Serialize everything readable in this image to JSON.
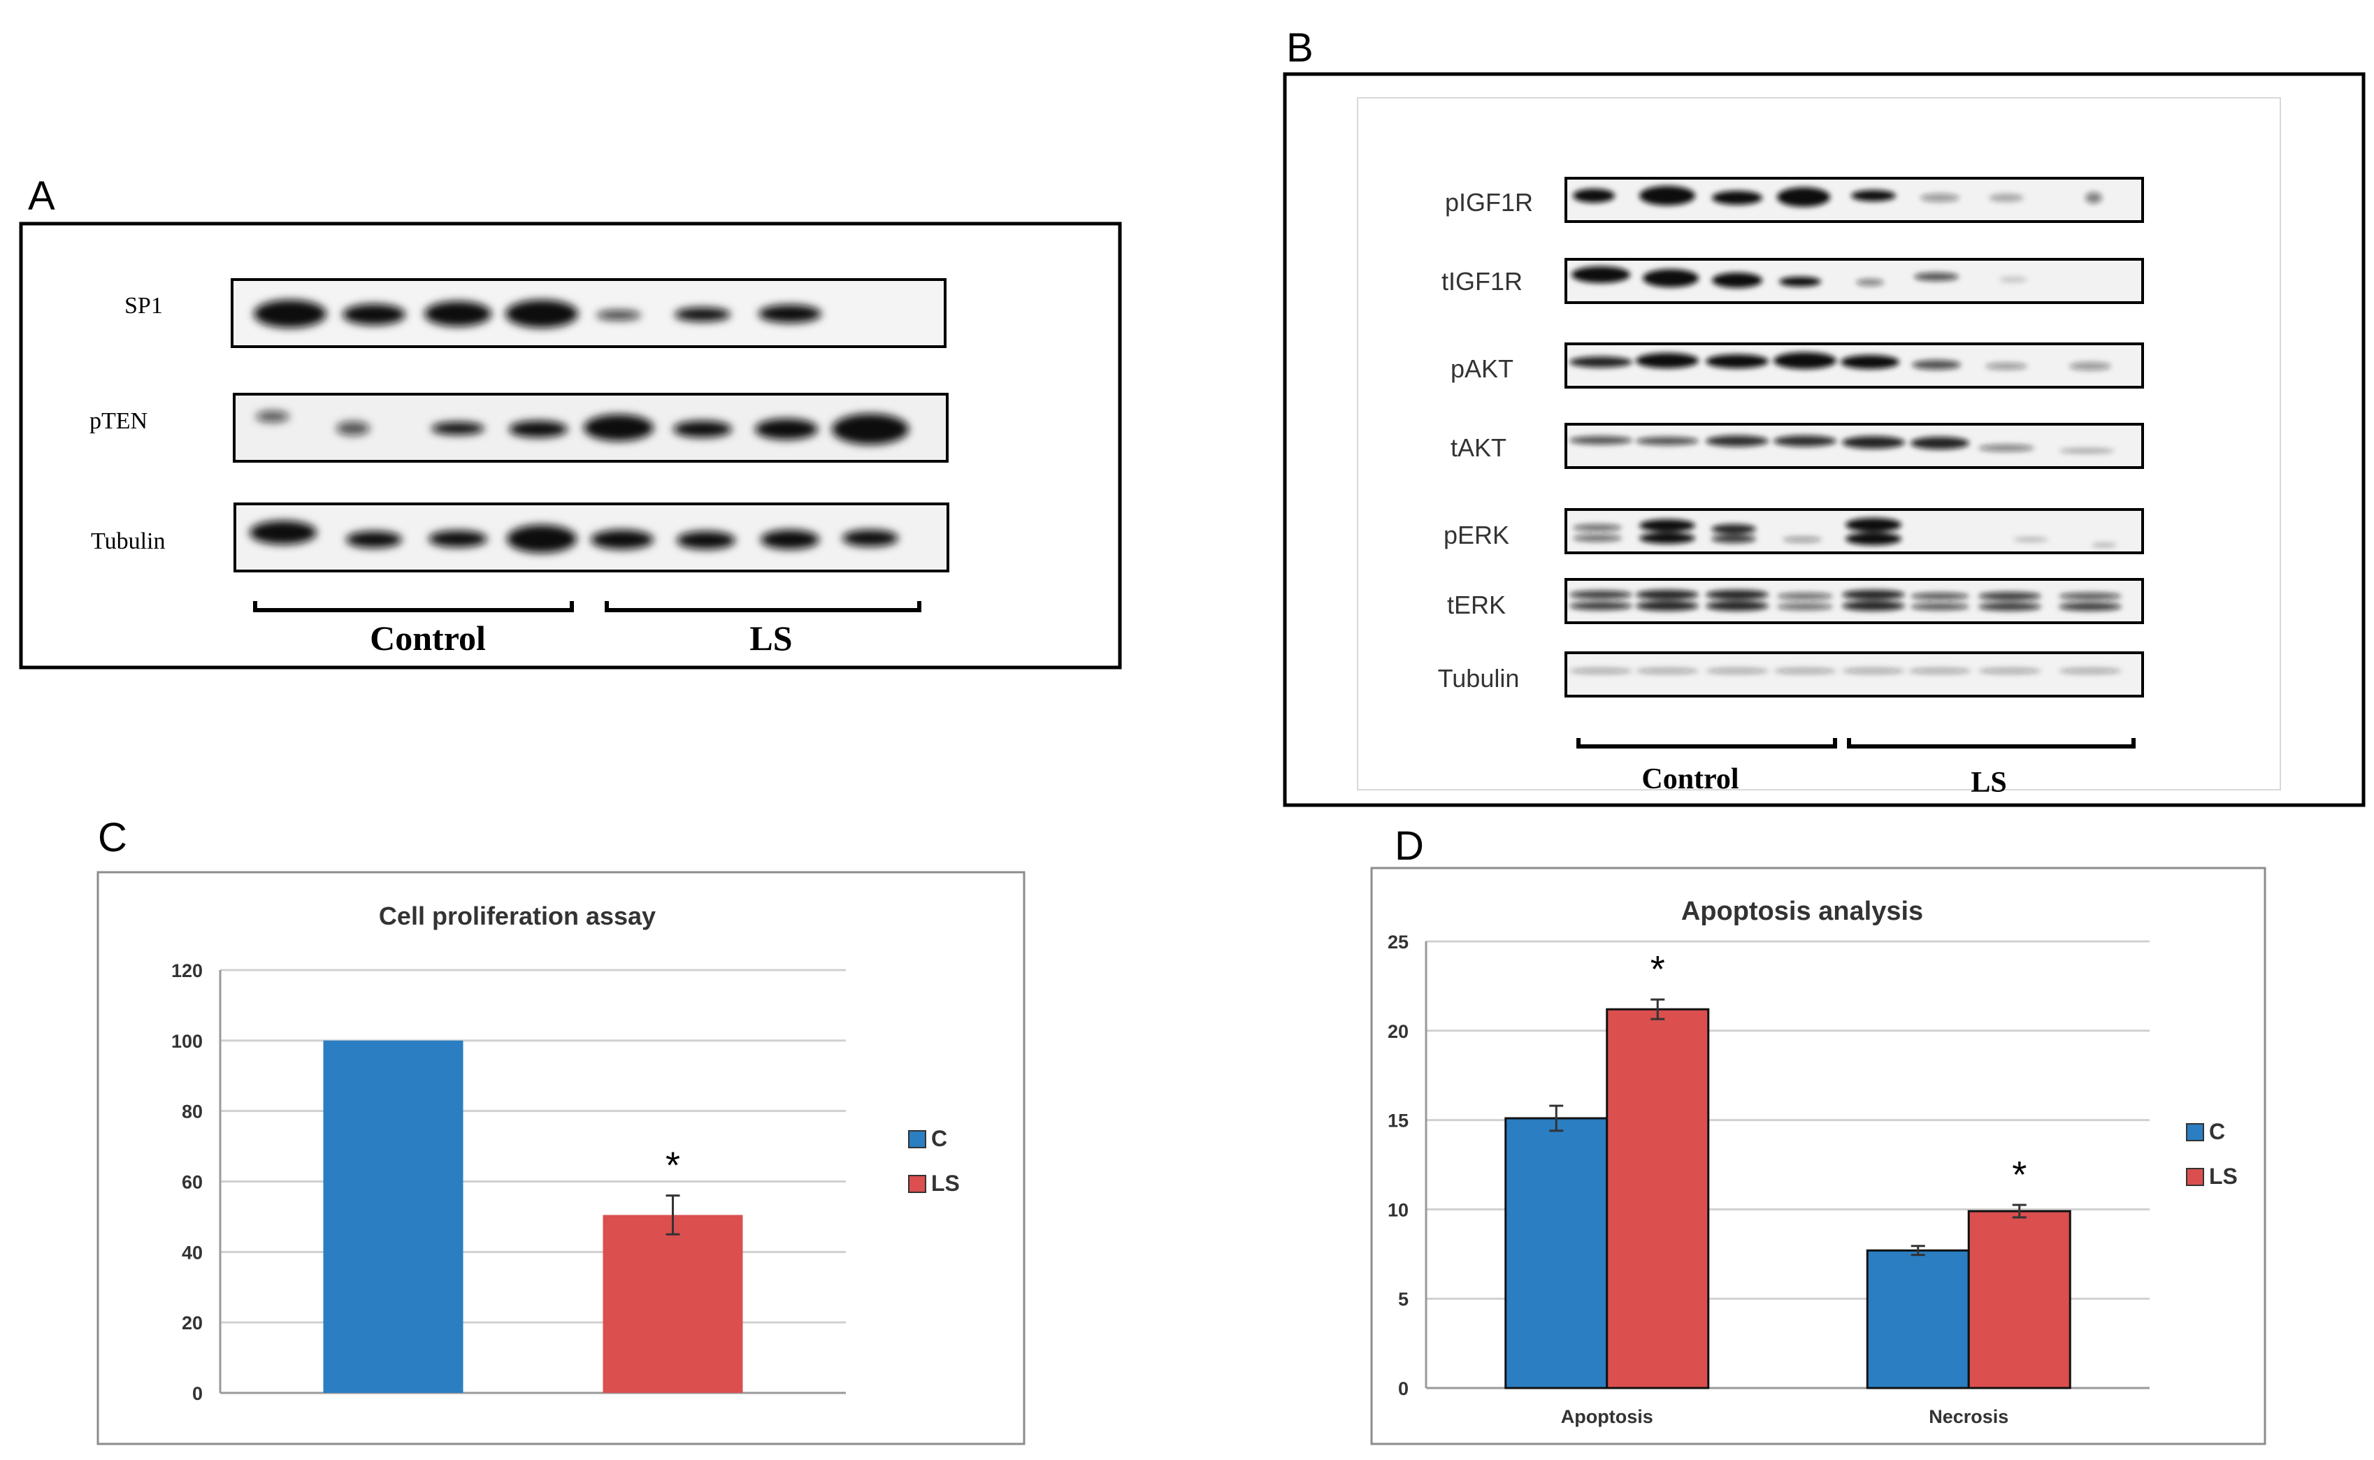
{
  "panels": {
    "A": {
      "letter": "A",
      "bands": [
        "SP1",
        "pTEN",
        "Tubulin"
      ],
      "groups": [
        "Control",
        "LS"
      ]
    },
    "B": {
      "letter": "B",
      "bands": [
        "pIGF1R",
        "tIGF1R",
        "pAKT",
        "tAKT",
        "pERK",
        "tERK",
        "Tubulin"
      ],
      "groups": [
        "Control",
        "LS"
      ]
    },
    "C": {
      "letter": "C"
    },
    "D": {
      "letter": "D"
    }
  },
  "chart_data": [
    {
      "panel": "C",
      "type": "bar",
      "title": "Cell proliferation assay",
      "categories": [
        ""
      ],
      "series": [
        {
          "name": "C",
          "color": "#2A7EC1",
          "values": [
            100
          ],
          "errors": [
            0
          ]
        },
        {
          "name": "LS",
          "color": "#DB4F4F",
          "values": [
            50.5
          ],
          "errors": [
            5.5
          ]
        }
      ],
      "ylim": [
        0,
        120
      ],
      "yticks": [
        "0",
        "20",
        "40",
        "60",
        "80",
        "100",
        "120"
      ],
      "annotations": [
        "*"
      ],
      "legend": [
        "C",
        "LS"
      ],
      "legend_position": "right",
      "grid": true
    },
    {
      "panel": "D",
      "type": "bar",
      "title": "Apoptosis analysis",
      "categories": [
        "Apoptosis",
        "Necrosis"
      ],
      "series": [
        {
          "name": "C",
          "color": "#2A7EC1",
          "values": [
            15.1,
            7.7
          ],
          "errors": [
            0.7,
            0.25
          ]
        },
        {
          "name": "LS",
          "color": "#DB4F4F",
          "values": [
            21.2,
            9.9
          ],
          "errors": [
            0.55,
            0.35
          ]
        }
      ],
      "ylim": [
        0,
        25
      ],
      "yticks": [
        "0",
        "5",
        "10",
        "15",
        "20",
        "25"
      ],
      "annotations": [
        "*",
        "*"
      ],
      "legend": [
        "C",
        "LS"
      ],
      "legend_position": "right",
      "grid": true
    }
  ]
}
